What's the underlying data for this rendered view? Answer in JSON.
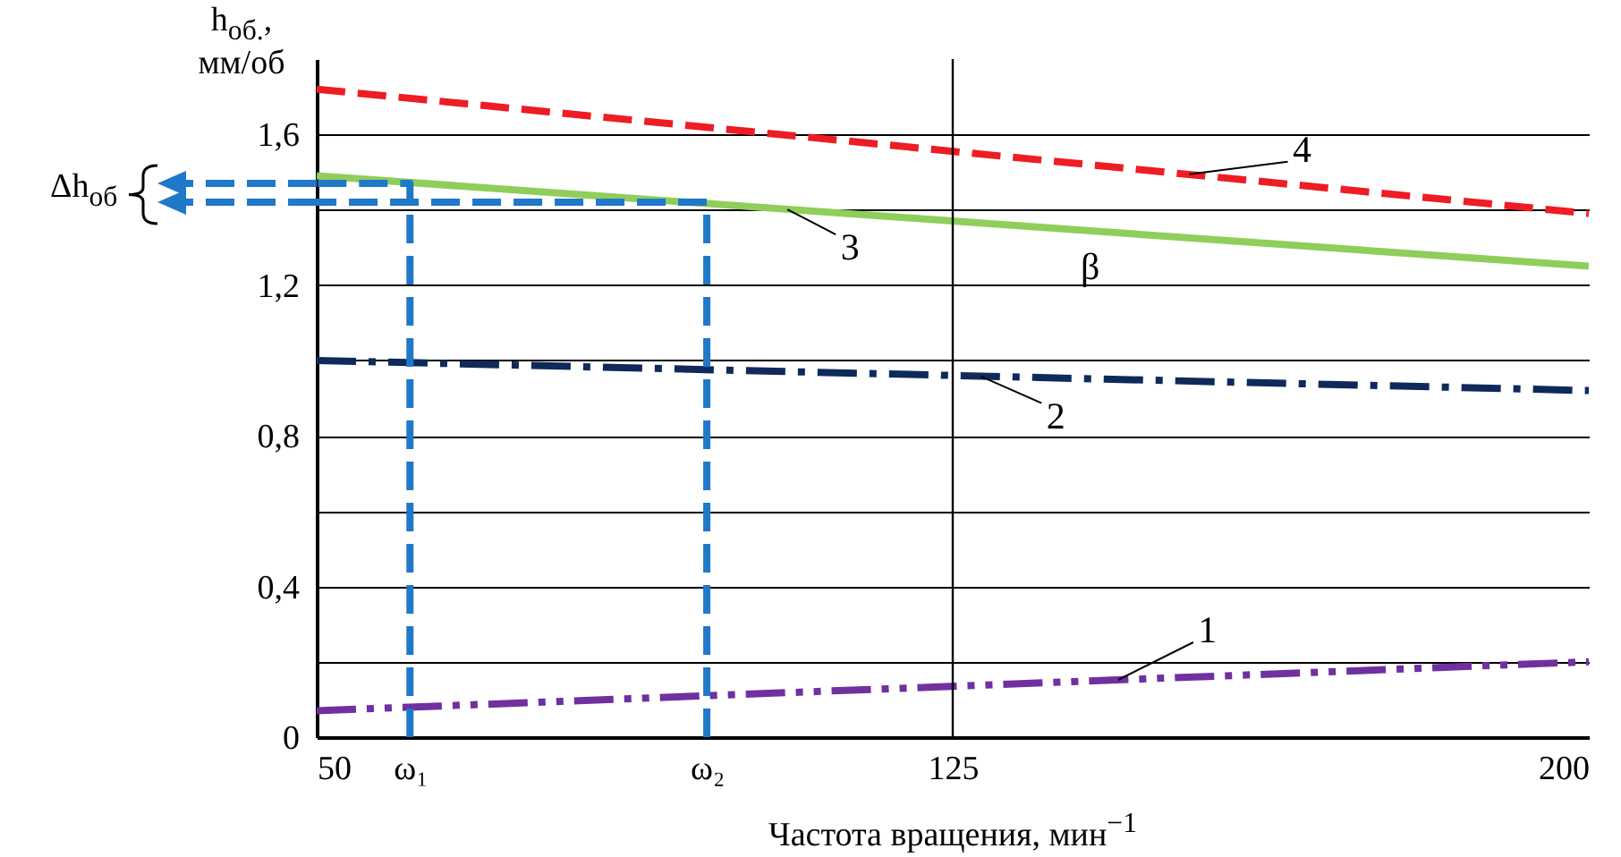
{
  "chart_data": {
    "type": "line",
    "xlabel": "Частота вращения, мин$^{−1}$",
    "ylabel": "h$_{об.}$, мм/об",
    "x": [
      50,
      200
    ],
    "series": [
      {
        "color": "#7030a0",
        "values": [
          0.07,
          0.2
        ],
        "line_style": "dashdotdot"
      },
      {
        "color": "#0f2a5a",
        "values": [
          1.0,
          0.92
        ],
        "line_style": "dashdot"
      },
      {
        "color": "#8fce5a",
        "values": [
          1.49,
          1.25
        ],
        "line_style": "solid"
      },
      {
        "color": "#ee1c24",
        "values": [
          1.72,
          1.39
        ],
        "line_style": "dashed"
      },
      {
        "color": "#1f78c8",
        "x": [
          61,
          61,
          50
        ],
        "values": [
          0,
          1.47,
          1.47
        ],
        "line_style": "dashed"
      },
      {
        "color": "#1f78c8",
        "x": [
          96,
          96,
          50
        ],
        "values": [
          0,
          1.42,
          1.42
        ],
        "line_style": "dashed"
      }
    ],
    "xlim": [
      50,
      200
    ],
    "xticks": [
      50,
      {
        "value": 61,
        "label": "ω₁"
      },
      {
        "value": 96,
        "label": "ω₂"
      },
      125,
      200
    ],
    "ylim": [
      0,
      1.8
    ],
    "yticks": [
      0,
      {
        "value": 0.2,
        "label": null
      },
      {
        "value": 0.4,
        "label": "0,4"
      },
      {
        "value": 0.6,
        "label": null
      },
      {
        "value": 0.8,
        "label": "0,8"
      },
      {
        "value": 1.0,
        "label": null
      },
      {
        "value": 1.2,
        "label": "1,2"
      },
      {
        "value": 1.4,
        "label": null
      },
      {
        "value": 1.6,
        "label": "1,6"
      }
    ],
    "grid": "y",
    "marker": "none",
    "ref_lines": [
      {
        "axis": "x",
        "value": 125,
        "color": "#000000"
      }
    ],
    "annotations": [
      {
        "text": "1",
        "x": 144.5,
        "y": 0.152
      },
      {
        "text": "2",
        "x": 128.3,
        "y": 0.958
      },
      {
        "text": "3",
        "x": 105.5,
        "y": 1.401
      },
      {
        "text": "4",
        "x": 152.9,
        "y": 1.494
      },
      "β",
      "Δh$_{об}$"
    ]
  }
}
